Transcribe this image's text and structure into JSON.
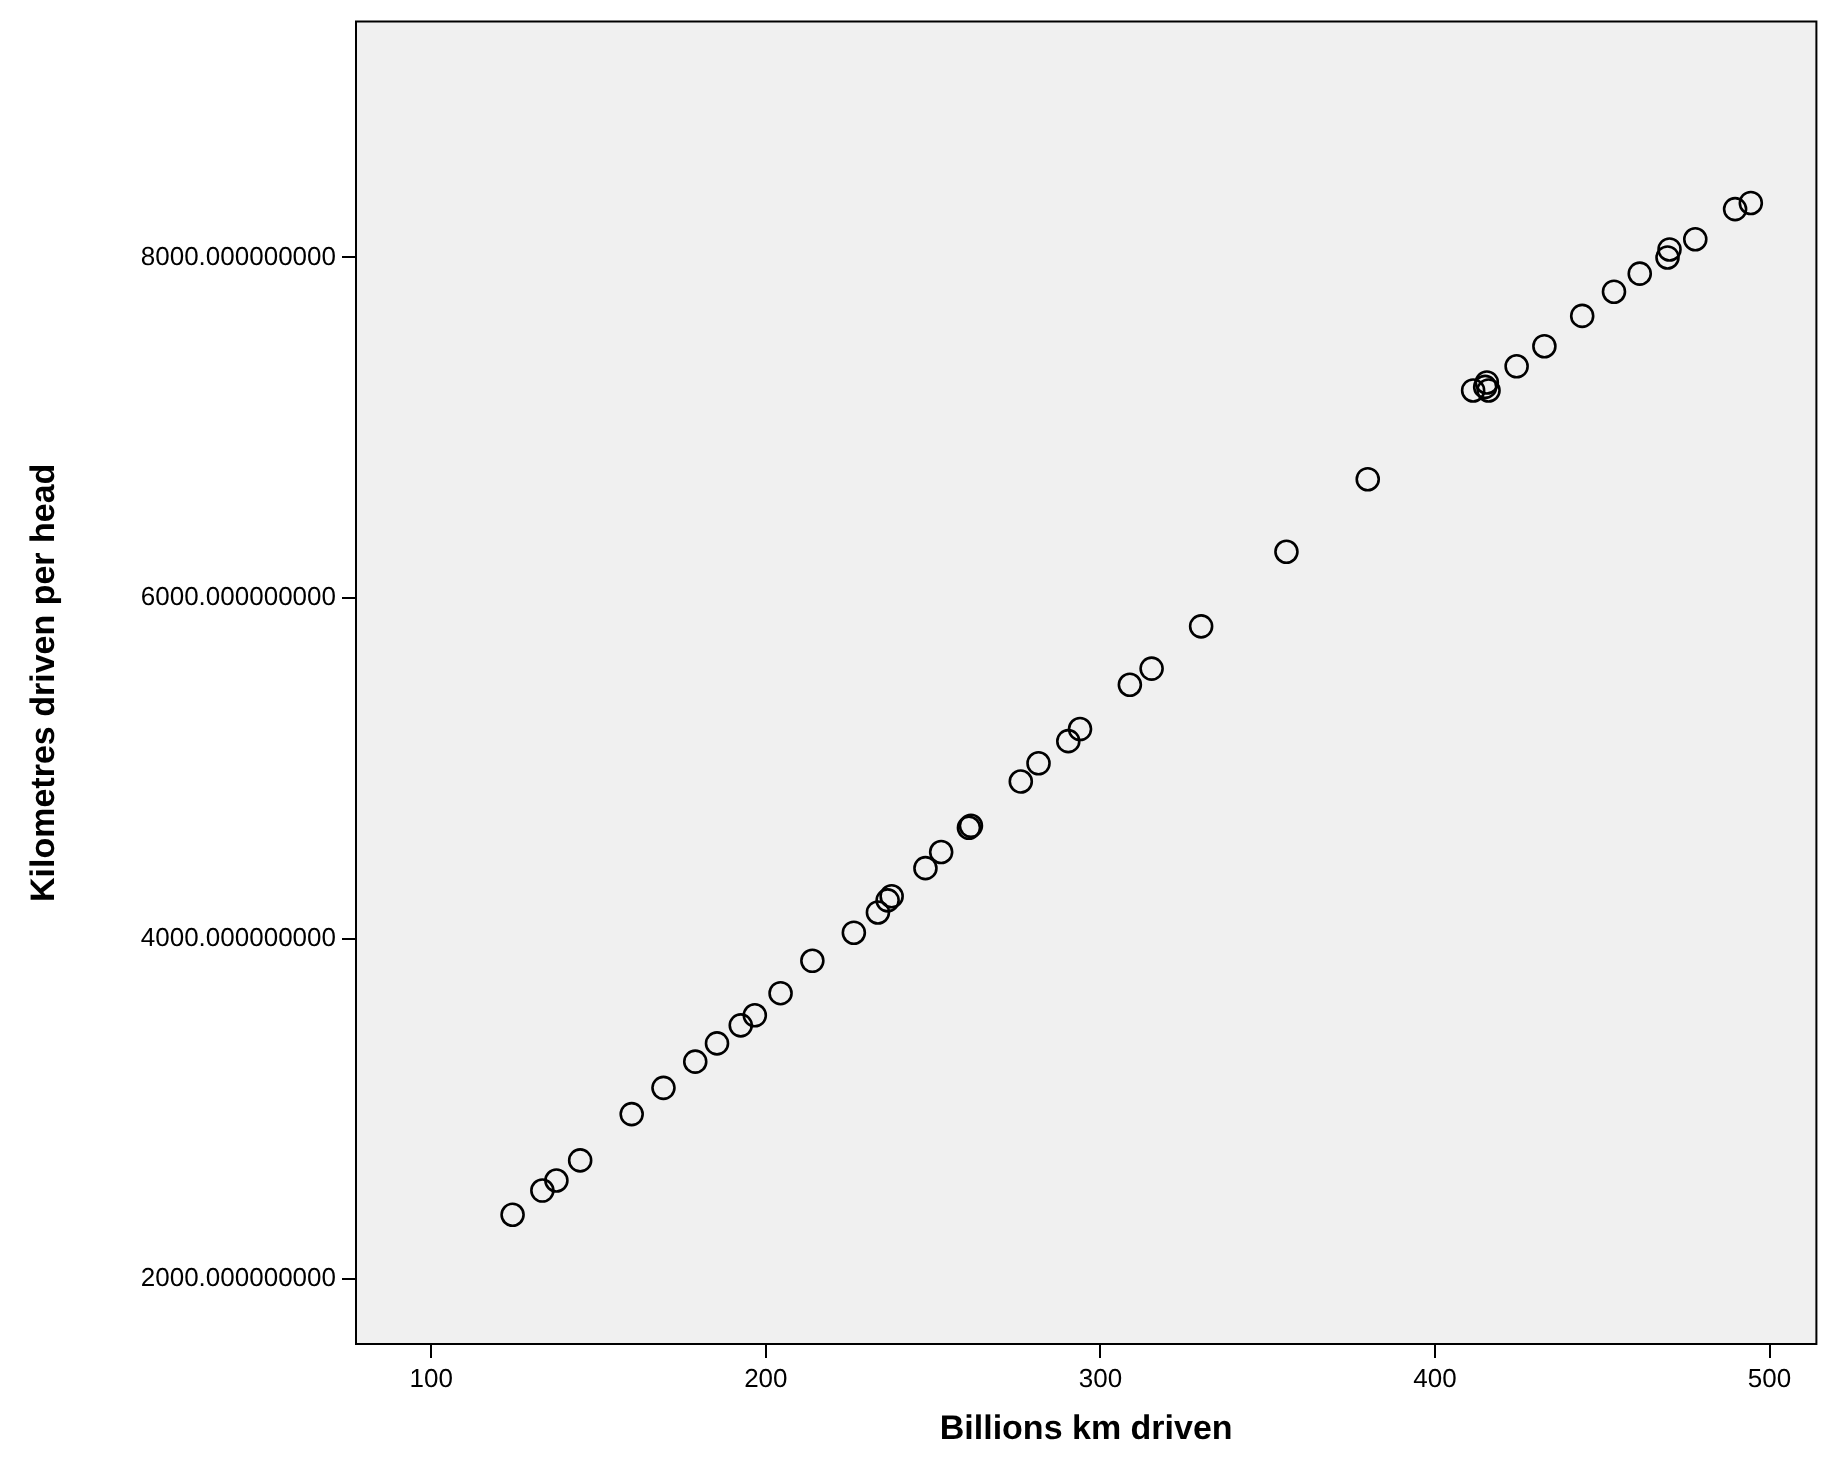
{
  "chart_data": {
    "type": "scatter",
    "xlabel": "Billions km driven",
    "ylabel": "Kilometres driven per head",
    "marker": "circle",
    "grid": false,
    "legend": false,
    "xlim": [
      77.5,
      514
    ],
    "xticks": [
      100,
      200,
      300,
      400,
      500
    ],
    "ylim": [
      1620,
      9385
    ],
    "yticks": [
      {
        "value": 2000,
        "label": "2000.000000000"
      },
      {
        "value": 4000,
        "label": "4000.000000000"
      },
      {
        "value": 6000,
        "label": "6000.000000000"
      },
      {
        "value": 8000,
        "label": "8000.000000000"
      }
    ],
    "series": [
      {
        "color": "#000000",
        "x": [
          124.3,
          133.2,
          137.4,
          144.5,
          159.9,
          169.4,
          178.9,
          185.4,
          192.5,
          196.7,
          204.4,
          213.9,
          226.3,
          233.5,
          236.4,
          237.6,
          247.7,
          252.4,
          260.7,
          261.3,
          276.2,
          281.5,
          290.4,
          293.9,
          308.8,
          315.3,
          330.1,
          355.6,
          379.9,
          411.4,
          415.5,
          416,
          415,
          424.4,
          432.7,
          444,
          453.5,
          461.2,
          469.5,
          470.1,
          477.8,
          489.7,
          494.4
        ],
        "values": [
          2379,
          2521,
          2580,
          2698,
          2970,
          3124,
          3278,
          3385,
          3491,
          3550,
          3680,
          3870,
          4035,
          4154,
          4225,
          4249,
          4414,
          4509,
          4651,
          4663,
          4923,
          5030,
          5160,
          5231,
          5491,
          5586,
          5834,
          6272,
          6698,
          7219,
          7266,
          7219,
          7240,
          7361,
          7479,
          7657,
          7799,
          7905,
          8000,
          8047,
          8107,
          8284,
          8320
        ]
      }
    ]
  }
}
